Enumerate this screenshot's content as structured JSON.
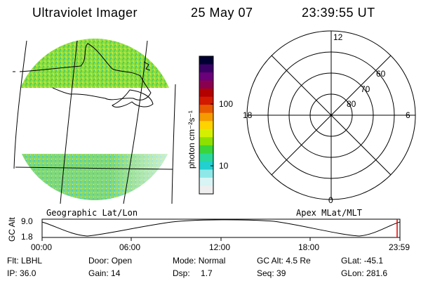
{
  "header": {
    "title": "Ultraviolet Imager",
    "date": "25 May 07",
    "time": "23:39:55 UT"
  },
  "map_panel": {
    "label": "Geographic Lat/Lon"
  },
  "colorbar": {
    "label": "photon cm⁻²s⁻¹",
    "ticks": [
      "100",
      "10"
    ],
    "colors": [
      "#000033",
      "#3a0066",
      "#6a007a",
      "#8a0050",
      "#b30000",
      "#d11a00",
      "#e85a00",
      "#f59a00",
      "#ffd200",
      "#d4f000",
      "#8ee000",
      "#3ad53a",
      "#2ad89a",
      "#22d0d0",
      "#8fe8e8",
      "#d8f4f4",
      "#eeeeee"
    ]
  },
  "polar_plot": {
    "label": "Apex MLat/MLT",
    "mlt_labels": {
      "top": "12",
      "left": "18",
      "right": "6",
      "bottom": "0"
    },
    "mlat_labels": [
      "60",
      "70",
      "80"
    ]
  },
  "altitude_panel": {
    "ylabel": "GC Alt",
    "y_ticks": [
      "9.0",
      "1.8"
    ],
    "x_ticks": [
      "00:00",
      "06:00",
      "12:00",
      "18:00",
      "23:59"
    ]
  },
  "status": {
    "flt_label": "Flt:",
    "flt_value": "LBHL",
    "ip_label": "IP:",
    "ip_value": "36.0",
    "door_label": "Door:",
    "door_value": "Open",
    "gain_label": "Gain:",
    "gain_value": "14",
    "mode_label": "Mode:",
    "mode_value": "Normal",
    "dsp_label": "Dsp:",
    "dsp_value": "1.7",
    "gcalt_label": "GC Alt:",
    "gcalt_value": "4.5 Re",
    "seq_label": "Seq:",
    "seq_value": "39",
    "glat_label": "GLat:",
    "glat_value": "-45.1",
    "glon_label": "GLon:",
    "glon_value": "281.6"
  },
  "accent_colors": {
    "image_green": "#8ede3a",
    "marker_red": "#e00000"
  }
}
